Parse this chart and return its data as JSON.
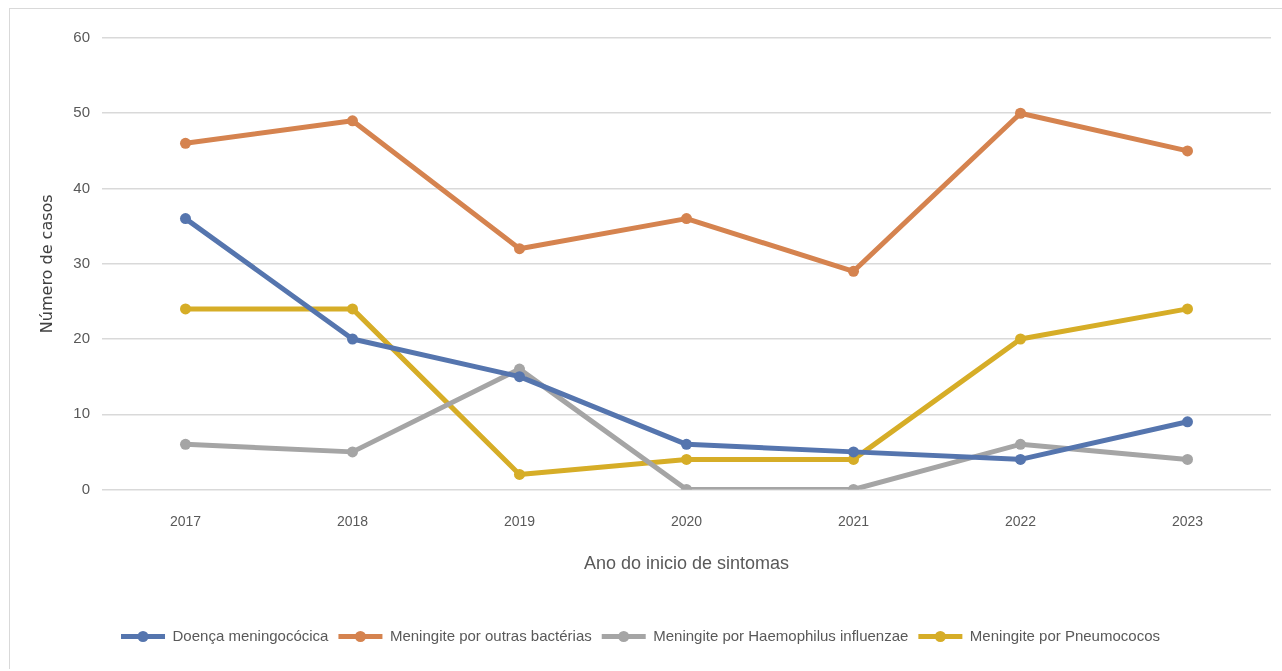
{
  "chart_data": {
    "type": "line",
    "xlabel": "Ano do inicio de sintomas",
    "ylabel": "Número de casos",
    "categories": [
      "2017",
      "2018",
      "2019",
      "2020",
      "2021",
      "2022",
      "2023"
    ],
    "series": [
      {
        "name": "Doença meningocócica",
        "color": "#5575ae",
        "values": [
          36,
          20,
          15,
          6,
          5,
          4,
          9
        ]
      },
      {
        "name": "Meningite por outras bactérias",
        "color": "#d5834f",
        "values": [
          46,
          49,
          32,
          36,
          29,
          50,
          45
        ]
      },
      {
        "name": "Meningite por Haemophilus influenzae",
        "color": "#a5a5a5",
        "values": [
          6,
          5,
          16,
          0,
          0,
          6,
          4
        ]
      },
      {
        "name": "Meningite por Pneumococos",
        "color": "#d6ad27",
        "values": [
          24,
          24,
          2,
          4,
          4,
          20,
          24
        ]
      }
    ],
    "ylim": [
      0,
      60
    ],
    "yticks": [
      0,
      10,
      20,
      30,
      40,
      50,
      60
    ],
    "grid": "y",
    "legend": "bottom",
    "marker": "circle",
    "line_style": "solid"
  }
}
